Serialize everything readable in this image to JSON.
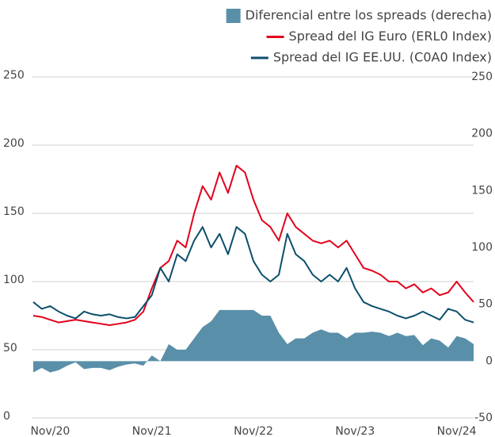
{
  "chart_data": {
    "type": "line",
    "categories": [
      null,
      null,
      "Nov/20",
      null,
      null,
      null,
      null,
      null,
      null,
      null,
      null,
      null,
      null,
      null,
      "Nov/21",
      null,
      null,
      null,
      null,
      null,
      null,
      null,
      null,
      null,
      null,
      null,
      "Nov/22",
      null,
      null,
      null,
      null,
      null,
      null,
      null,
      null,
      null,
      null,
      null,
      "Nov/23",
      null,
      null,
      null,
      null,
      null,
      null,
      null,
      null,
      null,
      null,
      null,
      "Nov/24",
      null,
      null
    ],
    "series": [
      {
        "name": "Diferencial entre los spreads (derecha)",
        "color": "#5a8fa9",
        "kind": "area",
        "axis": "y2",
        "values": [
          -10,
          -6,
          -10,
          -8,
          -4,
          -1,
          -7,
          -6,
          -6,
          -8,
          -5,
          -3,
          -2,
          -4,
          5,
          0,
          15,
          10,
          10,
          20,
          30,
          35,
          45,
          45,
          45,
          45,
          45,
          40,
          40,
          25,
          15,
          20,
          20,
          25,
          28,
          25,
          25,
          20,
          25,
          25,
          26,
          25,
          22,
          25,
          22,
          23,
          14,
          20,
          18,
          12,
          22,
          20,
          15
        ]
      },
      {
        "name": "Spread del IG Euro (ERL0 Index)",
        "color": "#e3001b",
        "kind": "line",
        "values": [
          75,
          74,
          72,
          70,
          71,
          72,
          71,
          70,
          69,
          68,
          69,
          70,
          72,
          78,
          95,
          110,
          115,
          130,
          125,
          150,
          170,
          160,
          180,
          165,
          185,
          180,
          160,
          145,
          140,
          130,
          150,
          140,
          135,
          130,
          128,
          130,
          125,
          130,
          120,
          110,
          108,
          105,
          100,
          100,
          95,
          98,
          92,
          95,
          90,
          92,
          100,
          92,
          85
        ]
      },
      {
        "name": "Spread del IG EE.UU. (C0A0 Index)",
        "color": "#0b4f6c",
        "kind": "line",
        "values": [
          85,
          80,
          82,
          78,
          75,
          73,
          78,
          76,
          75,
          76,
          74,
          73,
          74,
          82,
          90,
          110,
          100,
          120,
          115,
          130,
          140,
          125,
          135,
          120,
          140,
          135,
          115,
          105,
          100,
          105,
          135,
          120,
          115,
          105,
          100,
          105,
          100,
          110,
          95,
          85,
          82,
          80,
          78,
          75,
          73,
          75,
          78,
          75,
          72,
          80,
          78,
          72,
          70
        ]
      }
    ],
    "ylim": [
      0,
      250
    ],
    "yticks": [
      0,
      50,
      100,
      150,
      200,
      250
    ],
    "y2lim": [
      -50,
      250
    ],
    "y2ticks": [
      -50,
      0,
      50,
      100,
      150,
      200,
      250
    ],
    "grid": true,
    "legend": "top-right"
  }
}
